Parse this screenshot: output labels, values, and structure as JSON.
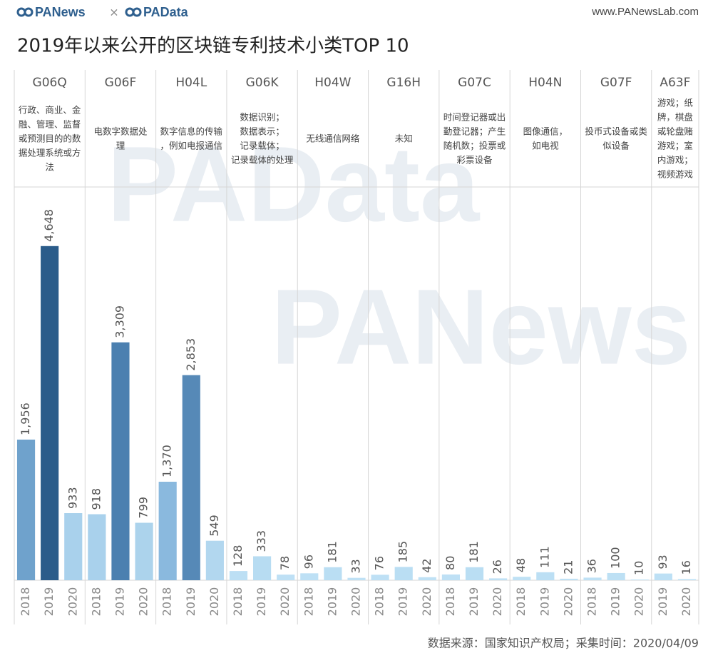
{
  "header": {
    "logo_left": "PANews",
    "separator": "×",
    "logo_right": "PAData",
    "url": "www.PANewsLab.com"
  },
  "watermark": [
    "PAData",
    "PANews"
  ],
  "chart_data": {
    "type": "bar",
    "title": "2019年以来公开的区块链专利技术小类TOP 10",
    "ylim": [
      0,
      5470
    ],
    "panels": [
      {
        "title": "G06Q",
        "description": [
          "行政、商业、金",
          "融、管理、监督",
          "或预测目的的数",
          "据处理系统或方",
          "法"
        ],
        "categories": [
          "2018",
          "2019",
          "2020"
        ],
        "values": [
          1956,
          4648,
          933
        ],
        "value_labels": [
          "1,956",
          "4,648",
          "933"
        ],
        "colors": [
          "#6fa2cc",
          "#2b5c8a",
          "#a9d1ec"
        ]
      },
      {
        "title": "G06F",
        "description": [
          "电数字数据处",
          "理"
        ],
        "categories": [
          "2018",
          "2019",
          "2020"
        ],
        "values": [
          918,
          3309,
          799
        ],
        "value_labels": [
          "918",
          "3,309",
          "799"
        ],
        "colors": [
          "#a9d1ec",
          "#4b80b0",
          "#acd3ec"
        ]
      },
      {
        "title": "H04L",
        "description": [
          "数字信息的传输",
          "，例如电报通信"
        ],
        "categories": [
          "2018",
          "2019",
          "2020"
        ],
        "values": [
          1370,
          2853,
          549
        ],
        "value_labels": [
          "1,370",
          "2,853",
          "549"
        ],
        "colors": [
          "#8ab9de",
          "#5689b7",
          "#b2d7ef"
        ]
      },
      {
        "title": "G06K",
        "description": [
          "数据识别；",
          "数据表示；",
          "记录载体；",
          "记录载体的处理"
        ],
        "categories": [
          "2018",
          "2019",
          "2020"
        ],
        "values": [
          128,
          333,
          78
        ],
        "value_labels": [
          "128",
          "333",
          "78"
        ],
        "colors": [
          "#bcdff4",
          "#b7dcf2",
          "#bee0f5"
        ]
      },
      {
        "title": "H04W",
        "description": [
          "无线通信网络"
        ],
        "categories": [
          "2018",
          "2019",
          "2020"
        ],
        "values": [
          96,
          181,
          33
        ],
        "value_labels": [
          "96",
          "181",
          "33"
        ],
        "colors": [
          "#bde0f5",
          "#badef3",
          "#bfe1f5"
        ]
      },
      {
        "title": "G16H",
        "description": [
          "未知"
        ],
        "categories": [
          "2018",
          "2019",
          "2020"
        ],
        "values": [
          76,
          185,
          42
        ],
        "value_labels": [
          "76",
          "185",
          "42"
        ],
        "colors": [
          "#bee0f5",
          "#badef3",
          "#bfe1f5"
        ]
      },
      {
        "title": "G07C",
        "description": [
          "时间登记器或出",
          "勤登记器；产生",
          "随机数；投票或",
          "彩票设备"
        ],
        "categories": [
          "2018",
          "2019",
          "2020"
        ],
        "values": [
          80,
          181,
          26
        ],
        "value_labels": [
          "80",
          "181",
          "26"
        ],
        "colors": [
          "#bee0f5",
          "#badef3",
          "#bfe1f5"
        ]
      },
      {
        "title": "H04N",
        "description": [
          "图像通信，",
          "如电视"
        ],
        "categories": [
          "2018",
          "2019",
          "2020"
        ],
        "values": [
          48,
          111,
          21
        ],
        "value_labels": [
          "48",
          "111",
          "21"
        ],
        "colors": [
          "#bfe1f5",
          "#bcdff4",
          "#bfe1f5"
        ]
      },
      {
        "title": "G07F",
        "description": [
          "投币式设备或类",
          "似设备"
        ],
        "categories": [
          "2018",
          "2019",
          "2020"
        ],
        "values": [
          36,
          100,
          10
        ],
        "value_labels": [
          "36",
          "100",
          "10"
        ],
        "colors": [
          "#bfe1f5",
          "#bde0f4",
          "#c0e2f6"
        ]
      },
      {
        "title": "A63F",
        "description": [
          "游戏；纸",
          "牌，棋盘",
          "或轮盘赌",
          "游戏；室",
          "内游戏；",
          "视频游戏"
        ],
        "categories": [
          "2019",
          "2020"
        ],
        "values": [
          93,
          16
        ],
        "value_labels": [
          "93",
          "16"
        ],
        "colors": [
          "#bde0f5",
          "#c0e2f6"
        ]
      }
    ]
  },
  "footer": {
    "source": "数据来源：国家知识产权局；采集时间：2020/04/09"
  }
}
